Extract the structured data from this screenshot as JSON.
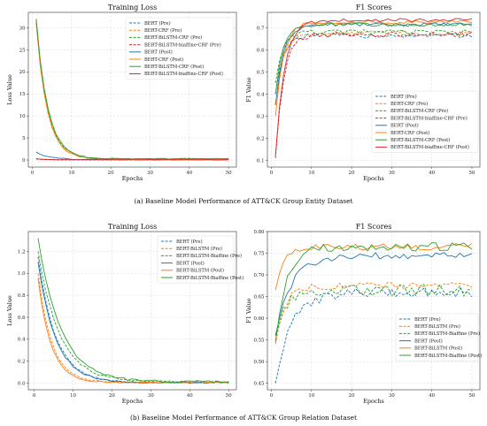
{
  "captions": {
    "a": "(a) Baseline Model Performance of ATT&CK Group Entity Dataset",
    "b": "(b) Baseline Model Performance of ATT&CK Group Relation Dataset"
  },
  "colors": {
    "blue": "#1f77b4",
    "orange": "#ff7f0e",
    "green": "#2ca02c",
    "red": "#d62728"
  },
  "chart_data": [
    {
      "type": "line",
      "title": "Training Loss",
      "xlabel": "Epochs",
      "ylabel": "Loss Value",
      "xlim": [
        -1,
        52
      ],
      "ylim": [
        -1.6,
        33.5
      ],
      "xticks": [
        0,
        10,
        20,
        30,
        40,
        50
      ],
      "yticks": [
        0,
        5,
        10,
        15,
        20,
        25,
        30
      ],
      "grid": true,
      "legend": "top-right",
      "series": [
        {
          "name": "BERT (Pre)",
          "color": "blue",
          "dash": "dashed",
          "start": 0.3,
          "end": 0.05,
          "k": 0.5,
          "noise": 0.02
        },
        {
          "name": "BERT-CRF (Pre)",
          "color": "orange",
          "dash": "dashed",
          "start": 31.5,
          "end": 0.2,
          "k": 0.36,
          "noise": 0.15
        },
        {
          "name": "BERT-BiLSTM-CRF (Pre)",
          "color": "green",
          "dash": "dashed",
          "start": 32.0,
          "end": 0.25,
          "k": 0.35,
          "noise": 0.15
        },
        {
          "name": "BERT-BiLSTM-biaffine-CRF (Pre)",
          "color": "red",
          "dash": "dashed",
          "start": 0.25,
          "end": 0.05,
          "k": 0.5,
          "noise": 0.02
        },
        {
          "name": "BERT (Post)",
          "color": "blue",
          "dash": "solid",
          "start": 1.8,
          "end": 0.1,
          "k": 0.3,
          "noise": 0.12
        },
        {
          "name": "BERT-CRF (Post)",
          "color": "orange",
          "dash": "solid",
          "start": 31.0,
          "end": 0.2,
          "k": 0.36,
          "noise": 0.12
        },
        {
          "name": "BERT-BiLSTM-CRF (Post)",
          "color": "green",
          "dash": "solid",
          "start": 32.0,
          "end": 0.25,
          "k": 0.34,
          "noise": 0.12
        },
        {
          "name": "BERT-BiLSTM-biaffine-CRF (Post)",
          "color": "red",
          "dash": "solid",
          "start": 0.3,
          "end": 0.05,
          "k": 0.5,
          "noise": 0.02
        }
      ]
    },
    {
      "type": "line",
      "title": "F1 Scores",
      "xlabel": "Epochs",
      "ylabel": "F1 Value",
      "xlim": [
        -1,
        52
      ],
      "ylim": [
        0.07,
        0.77
      ],
      "xticks": [
        0,
        10,
        20,
        30,
        40,
        50
      ],
      "yticks": [
        0.1,
        0.2,
        0.3,
        0.4,
        0.5,
        0.6,
        0.7
      ],
      "grid": true,
      "legend": "bottom-right",
      "series": [
        {
          "name": "BERT (Pre)",
          "color": "blue",
          "dash": "dashed",
          "start": 0.4,
          "end": 0.665,
          "k": 0.55,
          "noise": 0.012
        },
        {
          "name": "BERT-CRF (Pre)",
          "color": "orange",
          "dash": "dashed",
          "start": 0.35,
          "end": 0.675,
          "k": 0.55,
          "noise": 0.012
        },
        {
          "name": "BERT-BiLSTM-CRF (Pre)",
          "color": "green",
          "dash": "dashed",
          "start": 0.45,
          "end": 0.68,
          "k": 0.6,
          "noise": 0.012
        },
        {
          "name": "BERT-BiLSTM-biaffine-CRF (Pre)",
          "color": "red",
          "dash": "dashed",
          "start": 0.11,
          "end": 0.67,
          "k": 0.5,
          "noise": 0.012
        },
        {
          "name": "BERT (Post)",
          "color": "blue",
          "dash": "solid",
          "start": 0.35,
          "end": 0.715,
          "k": 0.5,
          "noise": 0.008
        },
        {
          "name": "BERT-CRF (Post)",
          "color": "orange",
          "dash": "solid",
          "start": 0.3,
          "end": 0.725,
          "k": 0.5,
          "noise": 0.008
        },
        {
          "name": "BERT-BiLSTM-CRF (Post)",
          "color": "green",
          "dash": "solid",
          "start": 0.4,
          "end": 0.715,
          "k": 0.55,
          "noise": 0.008
        },
        {
          "name": "BERT-BiLSTM-biaffine-CRF (Post)",
          "color": "red",
          "dash": "solid",
          "start": 0.12,
          "end": 0.735,
          "k": 0.45,
          "noise": 0.008
        }
      ]
    },
    {
      "type": "line",
      "title": "Training Loss",
      "xlabel": "Epochs",
      "ylabel": "Loss Value",
      "xlim": [
        -1.5,
        52
      ],
      "ylim": [
        -0.06,
        1.38
      ],
      "xticks": [
        0,
        10,
        20,
        30,
        40,
        50
      ],
      "yticks": [
        0.0,
        0.2,
        0.4,
        0.6,
        0.8,
        1.0,
        1.2
      ],
      "grid": true,
      "legend": "top-right",
      "series": [
        {
          "name": "BERT (Pre)",
          "color": "blue",
          "dash": "dashed",
          "start": 1.15,
          "end": 0.005,
          "k": 0.22,
          "noise": 0.008
        },
        {
          "name": "BERT-BiLSTM (Pre)",
          "color": "orange",
          "dash": "dashed",
          "start": 1.0,
          "end": 0.005,
          "k": 0.28,
          "noise": 0.006
        },
        {
          "name": "BERT-BiLSTM-Biaffine (Pre)",
          "color": "green",
          "dash": "dashed",
          "start": 1.2,
          "end": 0.01,
          "k": 0.18,
          "noise": 0.01
        },
        {
          "name": "BERT (Post)",
          "color": "blue",
          "dash": "solid",
          "start": 1.1,
          "end": 0.005,
          "k": 0.22,
          "noise": 0.008
        },
        {
          "name": "BERT-BiLSTM (Post)",
          "color": "orange",
          "dash": "solid",
          "start": 0.95,
          "end": 0.005,
          "k": 0.3,
          "noise": 0.006
        },
        {
          "name": "BERT-BiLSTM-Biaffine (Post)",
          "color": "green",
          "dash": "solid",
          "start": 1.32,
          "end": 0.01,
          "k": 0.17,
          "noise": 0.012
        }
      ]
    },
    {
      "type": "line",
      "title": "F1 Scores",
      "xlabel": "Epochs",
      "ylabel": "F1 Value",
      "xlim": [
        -1,
        52
      ],
      "ylim": [
        0.435,
        0.8
      ],
      "xticks": [
        0,
        10,
        20,
        30,
        40,
        50
      ],
      "yticks": [
        0.45,
        0.5,
        0.55,
        0.6,
        0.65,
        0.7,
        0.75,
        0.8
      ],
      "grid": true,
      "legend": "bottom-right",
      "series": [
        {
          "name": "BERT (Pre)",
          "color": "blue",
          "dash": "dashed",
          "start": 0.45,
          "end": 0.66,
          "k": 0.25,
          "noise": 0.012
        },
        {
          "name": "BERT-BiLSTM (Pre)",
          "color": "orange",
          "dash": "dashed",
          "start": 0.54,
          "end": 0.675,
          "k": 0.45,
          "noise": 0.008
        },
        {
          "name": "BERT-BiLSTM-Biaffine (Pre)",
          "color": "green",
          "dash": "dashed",
          "start": 0.56,
          "end": 0.665,
          "k": 0.35,
          "noise": 0.014
        },
        {
          "name": "BERT (Post)",
          "color": "blue",
          "dash": "solid",
          "start": 0.56,
          "end": 0.745,
          "k": 0.25,
          "noise": 0.008
        },
        {
          "name": "BERT-BiLSTM (Post)",
          "color": "orange",
          "dash": "solid",
          "start": 0.665,
          "end": 0.765,
          "k": 0.5,
          "noise": 0.008
        },
        {
          "name": "BERT-BiLSTM-Biaffine (Post)",
          "color": "green",
          "dash": "solid",
          "start": 0.545,
          "end": 0.765,
          "k": 0.35,
          "noise": 0.01
        }
      ]
    }
  ]
}
